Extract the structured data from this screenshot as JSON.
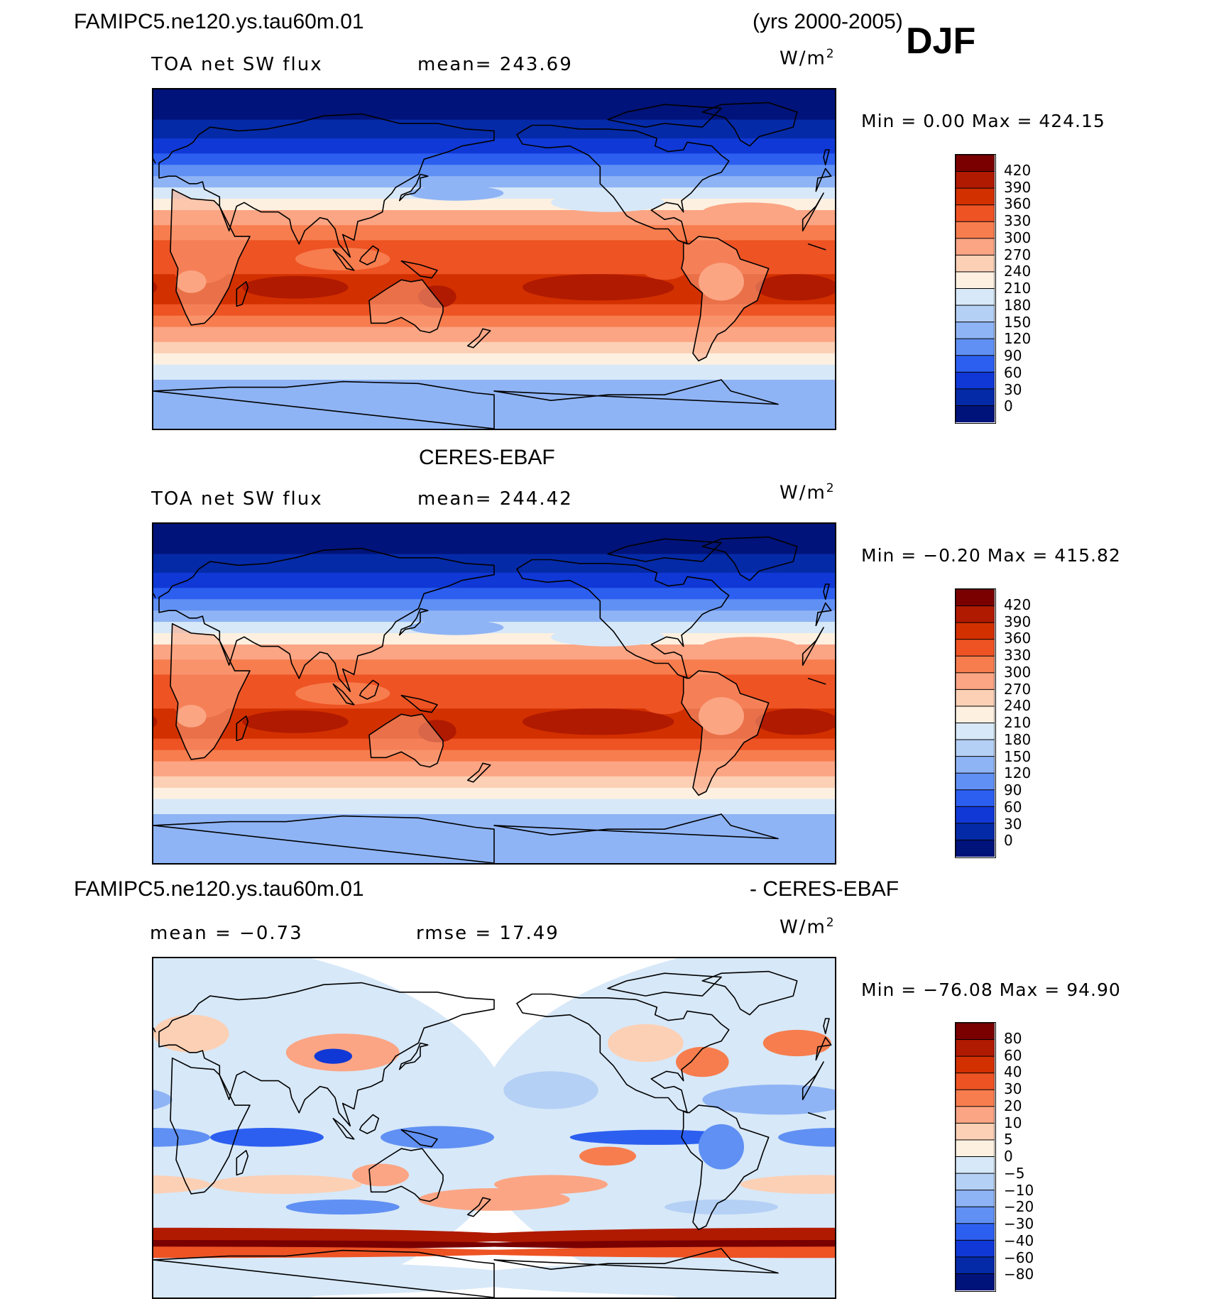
{
  "figure": {
    "case_title": "FAMIPC5.ne120.ys.tau60m.01",
    "years": "(yrs 2000-2005)",
    "season": "DJF"
  },
  "panels": [
    {
      "id": "model",
      "variable": "TOA net SW flux",
      "stat1": "mean=  243.69",
      "stat2": "",
      "units": "W/m",
      "units_sup": "2",
      "minmax": "Min  =     0.00  Max  =  424.15",
      "map_kind": "sw",
      "colorbar": {
        "levels": [
          "420",
          "390",
          "360",
          "330",
          "300",
          "270",
          "240",
          "210",
          "180",
          "150",
          "120",
          "90",
          "60",
          "30",
          "0"
        ],
        "colors": [
          "#7a0000",
          "#b01a00",
          "#d33000",
          "#ee5324",
          "#f77d4e",
          "#fba584",
          "#fcd0b5",
          "#fdf0e0",
          "#d7e8f8",
          "#b5d0f5",
          "#8fb4f5",
          "#6090f3",
          "#2c5ff0",
          "#1038d6",
          "#052aa8",
          "#00137a"
        ]
      }
    },
    {
      "id": "obs",
      "label": "CERES-EBAF",
      "variable": "TOA net SW flux",
      "stat1": "mean=  244.42",
      "stat2": "",
      "units": "W/m",
      "units_sup": "2",
      "minmax": "Min  =   −0.20  Max  =  415.82",
      "map_kind": "sw",
      "colorbar": {
        "levels": [
          "420",
          "390",
          "360",
          "330",
          "300",
          "270",
          "240",
          "210",
          "180",
          "150",
          "120",
          "90",
          "60",
          "30",
          "0"
        ],
        "colors": [
          "#7a0000",
          "#b01a00",
          "#d33000",
          "#ee5324",
          "#f77d4e",
          "#fba584",
          "#fcd0b5",
          "#fdf0e0",
          "#d7e8f8",
          "#b5d0f5",
          "#8fb4f5",
          "#6090f3",
          "#2c5ff0",
          "#1038d6",
          "#052aa8",
          "#00137a"
        ]
      }
    },
    {
      "id": "diff",
      "left_label": "FAMIPC5.ne120.ys.tau60m.01",
      "right_label": "- CERES-EBAF",
      "variable": "mean  =   −0.73",
      "stat1": "rmse  =   17.49",
      "stat2": "",
      "units": "W/m",
      "units_sup": "2",
      "minmax": "Min  =  −76.08  Max  =    94.90",
      "map_kind": "diff",
      "colorbar": {
        "levels": [
          "80",
          "60",
          "40",
          "30",
          "20",
          "10",
          "5",
          "0",
          "−5",
          "−10",
          "−20",
          "−30",
          "−40",
          "−60",
          "−80"
        ],
        "colors": [
          "#7a0000",
          "#b01a00",
          "#d33000",
          "#ee5324",
          "#f77d4e",
          "#fba584",
          "#fcd0b5",
          "#fdf0e0",
          "#d7e8f8",
          "#b5d0f5",
          "#8fb4f5",
          "#6090f3",
          "#2c5ff0",
          "#1038d6",
          "#052aa8",
          "#00137a"
        ]
      }
    }
  ]
}
